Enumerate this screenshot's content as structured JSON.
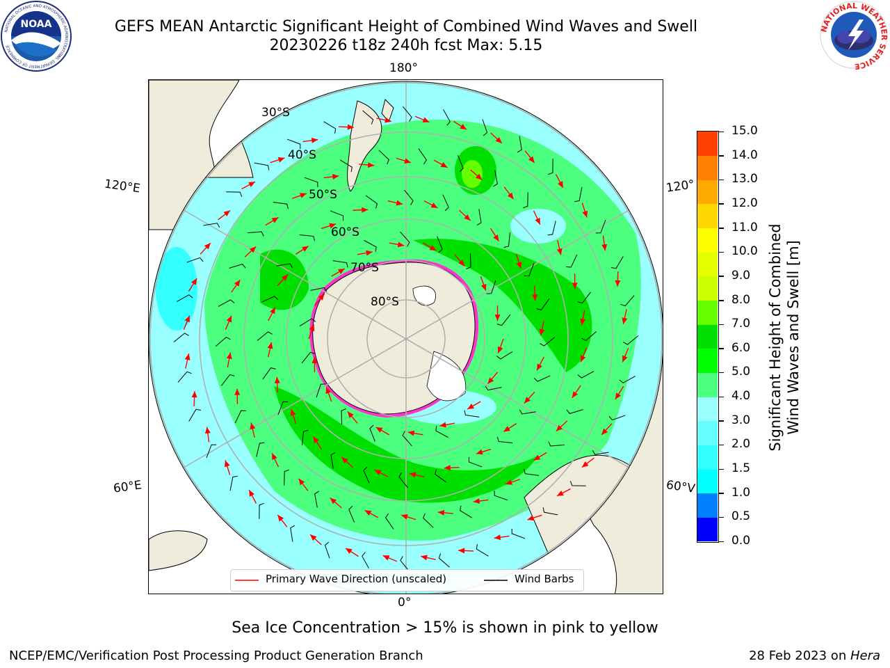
{
  "title": {
    "line1": "GEFS MEAN Antarctic Significant Height of Combined Wind Waves and Swell",
    "line2": "20230226 t18z 240h fcst   Max: 5.15"
  },
  "logos": {
    "left": "noaa-logo",
    "right": "national-weather-service-logo",
    "noaa_text": "NOAA",
    "noaa_ring": "NATIONAL OCEANIC AND ATMOSPHERIC ADMINISTRATION",
    "noaa_ring_bottom": "U.S. DEPARTMENT OF COMMERCE",
    "nws_ring": "NATIONAL WEATHER SERVICE"
  },
  "map": {
    "projection": "south-polar-stereographic",
    "longitude_labels": {
      "top": "180°",
      "bottom": "0°",
      "upper_left": "120°E",
      "lower_left": "60°E",
      "upper_right": "120°",
      "lower_right": "60°V"
    },
    "latitude_labels": [
      "30°S",
      "40°S",
      "50°S",
      "60°S",
      "70°S",
      "80°S"
    ],
    "colors": {
      "land": "#efecdc",
      "wave_2_3": "#99ffff",
      "wave_3_4": "#4cff7f",
      "wave_4_5": "#00e000",
      "wave_15_2": "#33ffff",
      "grid": "#b0b0b0",
      "wave_arrow": "#ff0000",
      "wind_barb": "#000000",
      "sea_ice": "#ff33cc"
    }
  },
  "legend": {
    "wave_label": "Primary Wave Direction (unscaled)",
    "wind_label": "Wind Barbs"
  },
  "colorbar": {
    "label_line1": "Significant Height of Combined",
    "label_line2": "Wind Waves and Swell [m]",
    "ticks": [
      "0.0",
      "0.5",
      "1.0",
      "1.5",
      "2.0",
      "3.0",
      "4.0",
      "5.0",
      "6.0",
      "7.0",
      "8.0",
      "9.0",
      "10.0",
      "11.0",
      "12.0",
      "13.0",
      "14.0",
      "15.0"
    ],
    "colors": [
      "#0000ff",
      "#0080ff",
      "#00ffff",
      "#33ffff",
      "#66ffff",
      "#99ffff",
      "#4cff7f",
      "#00ff00",
      "#00e000",
      "#66ff00",
      "#ccff00",
      "#e5ff00",
      "#ffff00",
      "#ffd700",
      "#ffaa00",
      "#ff8000",
      "#ff4000",
      "#ff0000"
    ]
  },
  "subtitle": "Sea Ice Concentration > 15% is shown in pink to yellow",
  "footer": {
    "left": "NCEP/EMC/Verification Post Processing Product Generation Branch",
    "right_prefix": "28 Feb 2023 on ",
    "right_host": "Hera"
  }
}
